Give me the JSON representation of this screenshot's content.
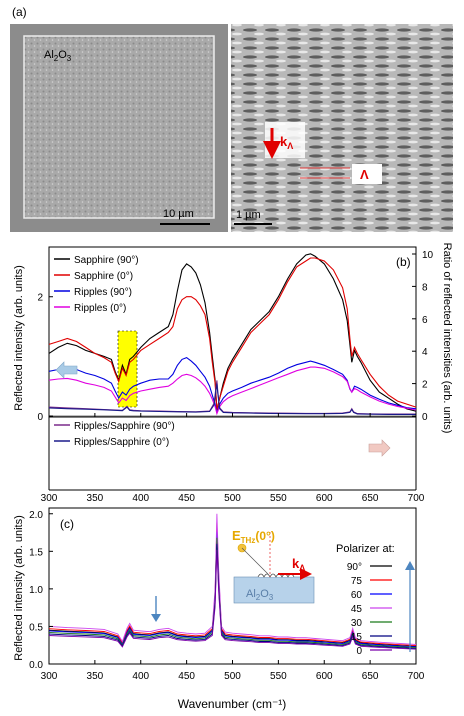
{
  "panel_a": {
    "label": "(a)",
    "left_image": {
      "material_label": "Al2O3",
      "scale_bar_label": "10 µm"
    },
    "right_image": {
      "k_label": "k",
      "k_subscript": "Λ",
      "period_label": "Λ",
      "scale_bar_label": "1 µm"
    }
  },
  "chart_data": [
    {
      "panel": "(b)",
      "type": "line",
      "xlim": [
        300,
        700
      ],
      "left_axis": {
        "ylabel": "Reflected intensity (arb. units)",
        "ticks": [
          0,
          2
        ],
        "ylim": [
          0,
          2.7
        ]
      },
      "right_axis": {
        "ylabel": "Ratio of reflected intensities (arb. units)",
        "ticks": [
          0,
          2,
          4,
          6,
          8,
          10
        ],
        "ylim": [
          0,
          10
        ]
      },
      "highlight": {
        "x_range": [
          370,
          388
        ],
        "color": "#ffff00"
      },
      "series": [
        {
          "name": "Sapphire (90°)",
          "color": "#000000",
          "axis": "left",
          "x": [
            300,
            310,
            320,
            330,
            340,
            350,
            360,
            368,
            372,
            376,
            380,
            384,
            388,
            392,
            400,
            410,
            420,
            430,
            435,
            440,
            445,
            450,
            455,
            460,
            465,
            470,
            475,
            478,
            481,
            483,
            486,
            490,
            495,
            500,
            510,
            520,
            530,
            540,
            550,
            560,
            570,
            580,
            585,
            590,
            600,
            610,
            620,
            625,
            628,
            630,
            633,
            636,
            640,
            650,
            660,
            670,
            680,
            690,
            700
          ],
          "y": [
            1.05,
            1.15,
            1.22,
            1.18,
            1.1,
            1.05,
            1.0,
            0.95,
            0.75,
            0.6,
            0.85,
            0.7,
            0.95,
            1.0,
            1.15,
            1.3,
            1.4,
            1.5,
            1.7,
            2.1,
            2.45,
            2.55,
            2.5,
            2.4,
            2.2,
            1.9,
            1.4,
            1.0,
            0.6,
            0.1,
            0.3,
            0.55,
            0.8,
            0.95,
            1.2,
            1.45,
            1.6,
            1.75,
            2.0,
            2.3,
            2.55,
            2.7,
            2.72,
            2.68,
            2.55,
            2.3,
            1.95,
            1.6,
            1.2,
            0.9,
            1.1,
            1.0,
            0.9,
            0.6,
            0.4,
            0.3,
            0.2,
            0.12,
            0.08
          ]
        },
        {
          "name": "Sapphire (0°)",
          "color": "#e00000",
          "axis": "left",
          "x": [
            300,
            310,
            320,
            330,
            340,
            350,
            360,
            368,
            372,
            376,
            380,
            384,
            388,
            392,
            400,
            410,
            420,
            430,
            435,
            440,
            445,
            450,
            455,
            460,
            465,
            470,
            475,
            478,
            481,
            483,
            486,
            490,
            495,
            500,
            510,
            520,
            530,
            540,
            550,
            560,
            570,
            580,
            585,
            590,
            600,
            610,
            620,
            625,
            628,
            630,
            633,
            636,
            640,
            650,
            660,
            670,
            680,
            690,
            700
          ],
          "y": [
            1.2,
            1.25,
            1.3,
            1.25,
            1.15,
            1.05,
            0.98,
            0.9,
            0.72,
            0.58,
            0.8,
            0.68,
            0.9,
            0.95,
            1.1,
            1.2,
            1.3,
            1.4,
            1.5,
            1.8,
            1.95,
            2.0,
            2.0,
            1.95,
            1.85,
            1.7,
            1.3,
            0.9,
            0.55,
            0.1,
            0.3,
            0.5,
            0.75,
            0.9,
            1.15,
            1.4,
            1.55,
            1.7,
            1.95,
            2.25,
            2.5,
            2.6,
            2.65,
            2.65,
            2.6,
            2.45,
            2.15,
            1.8,
            1.3,
            1.0,
            1.15,
            1.05,
            0.95,
            0.7,
            0.5,
            0.35,
            0.25,
            0.2,
            0.15
          ]
        },
        {
          "name": "Ripples (90°)",
          "color": "#0000e0",
          "axis": "left",
          "x": [
            300,
            310,
            320,
            330,
            340,
            350,
            360,
            368,
            372,
            376,
            380,
            384,
            388,
            392,
            400,
            410,
            420,
            430,
            435,
            440,
            445,
            450,
            455,
            460,
            465,
            470,
            475,
            478,
            481,
            483,
            486,
            490,
            495,
            500,
            510,
            520,
            530,
            540,
            550,
            560,
            570,
            580,
            585,
            590,
            600,
            610,
            620,
            625,
            628,
            630,
            633,
            636,
            640,
            650,
            660,
            670,
            680,
            690,
            700
          ],
          "y": [
            0.75,
            0.78,
            0.8,
            0.78,
            0.72,
            0.68,
            0.62,
            0.55,
            0.42,
            0.3,
            0.4,
            0.35,
            0.45,
            0.5,
            0.55,
            0.6,
            0.62,
            0.62,
            0.7,
            0.85,
            0.95,
            0.98,
            0.92,
            0.85,
            0.75,
            0.65,
            0.5,
            0.35,
            0.2,
            0.05,
            0.2,
            0.3,
            0.38,
            0.42,
            0.48,
            0.55,
            0.6,
            0.65,
            0.72,
            0.8,
            0.86,
            0.9,
            0.92,
            0.9,
            0.85,
            0.78,
            0.7,
            0.6,
            0.45,
            0.4,
            0.5,
            0.48,
            0.45,
            0.35,
            0.28,
            0.22,
            0.18,
            0.14,
            0.12
          ]
        },
        {
          "name": "Ripples (0°)",
          "color": "#e000e0",
          "axis": "left",
          "x": [
            300,
            310,
            320,
            330,
            340,
            350,
            360,
            368,
            372,
            376,
            380,
            384,
            388,
            392,
            400,
            410,
            420,
            430,
            435,
            440,
            445,
            450,
            455,
            460,
            465,
            470,
            475,
            478,
            481,
            483,
            486,
            490,
            495,
            500,
            510,
            520,
            530,
            540,
            550,
            560,
            570,
            580,
            585,
            590,
            600,
            610,
            620,
            625,
            628,
            630,
            633,
            636,
            640,
            650,
            660,
            670,
            680,
            690,
            700
          ],
          "y": [
            0.6,
            0.62,
            0.63,
            0.6,
            0.55,
            0.52,
            0.48,
            0.42,
            0.32,
            0.22,
            0.3,
            0.26,
            0.34,
            0.38,
            0.42,
            0.45,
            0.48,
            0.5,
            0.55,
            0.62,
            0.68,
            0.7,
            0.68,
            0.64,
            0.58,
            0.5,
            0.38,
            0.28,
            0.16,
            0.04,
            0.16,
            0.24,
            0.3,
            0.34,
            0.4,
            0.46,
            0.52,
            0.58,
            0.64,
            0.7,
            0.76,
            0.8,
            0.82,
            0.82,
            0.8,
            0.74,
            0.66,
            0.58,
            0.46,
            0.4,
            0.46,
            0.44,
            0.4,
            0.32,
            0.25,
            0.2,
            0.16,
            0.13,
            0.1
          ]
        },
        {
          "name": "Ripples/Sapphire (90°)",
          "color": "#7a2a8a",
          "axis": "right",
          "x": [
            300,
            320,
            340,
            360,
            380,
            385,
            388,
            392,
            400,
            420,
            440,
            460,
            475,
            480,
            482,
            483,
            484,
            486,
            490,
            500,
            520,
            540,
            560,
            580,
            600,
            620,
            628,
            630,
            632,
            636,
            650,
            670,
            690,
            700
          ],
          "y": [
            0.55,
            0.5,
            0.45,
            0.4,
            0.35,
            0.6,
            0.38,
            0.35,
            0.32,
            0.3,
            0.28,
            0.26,
            0.3,
            0.8,
            1.8,
            2.2,
            1.5,
            0.5,
            0.25,
            0.22,
            0.2,
            0.18,
            0.17,
            0.16,
            0.16,
            0.18,
            0.25,
            0.45,
            0.25,
            0.15,
            0.13,
            0.12,
            0.12,
            0.12
          ]
        },
        {
          "name": "Ripples/Sapphire (0°)",
          "color": "#1a1a8a",
          "axis": "right",
          "x": [
            300,
            320,
            340,
            360,
            380,
            385,
            388,
            392,
            400,
            420,
            440,
            460,
            475,
            480,
            482,
            483,
            484,
            486,
            490,
            500,
            520,
            540,
            560,
            580,
            600,
            620,
            628,
            630,
            632,
            636,
            650,
            670,
            690,
            700
          ],
          "y": [
            0.5,
            0.45,
            0.42,
            0.38,
            0.33,
            0.55,
            0.35,
            0.32,
            0.3,
            0.28,
            0.26,
            0.24,
            0.28,
            0.7,
            1.6,
            2.0,
            1.4,
            0.45,
            0.22,
            0.2,
            0.18,
            0.16,
            0.15,
            0.14,
            0.14,
            0.16,
            0.22,
            0.4,
            0.22,
            0.13,
            0.11,
            0.1,
            0.1,
            0.1
          ]
        }
      ]
    },
    {
      "panel": "(c)",
      "type": "line",
      "xlim": [
        300,
        700
      ],
      "ylim": [
        0,
        2.05
      ],
      "xlabel": "Wavenumber (cm⁻¹)",
      "ylabel": "Reflected intensity (arb. units)",
      "xticks": [
        300,
        350,
        400,
        450,
        500,
        550,
        600,
        650,
        700
      ],
      "yticks": [
        0.0,
        0.5,
        1.0,
        1.5,
        2.0
      ],
      "legend_title": "Polarizer at:",
      "inset": {
        "field_label": "E",
        "field_subscript": "THz",
        "field_angle": "(0°)",
        "wave_label": "k",
        "wave_subscript": "Λ",
        "substrate_label": "Al2O3"
      },
      "series": [
        {
          "name": "90°",
          "color": "#000000",
          "base": 0.45
        },
        {
          "name": "75",
          "color": "#ff0000",
          "base": 0.47
        },
        {
          "name": "60",
          "color": "#0000ff",
          "base": 0.44
        },
        {
          "name": "45",
          "color": "#cc44ee",
          "base": 0.5
        },
        {
          "name": "30",
          "color": "#1a7a1a",
          "base": 0.42
        },
        {
          "name": "15",
          "color": "#000080",
          "base": 0.4
        },
        {
          "name": "0",
          "color": "#7a00aa",
          "base": 0.38
        }
      ],
      "shape": {
        "x": [
          300,
          320,
          340,
          360,
          375,
          380,
          385,
          388,
          392,
          400,
          410,
          420,
          430,
          440,
          450,
          460,
          470,
          478,
          481,
          483,
          485,
          488,
          492,
          500,
          510,
          520,
          530,
          540,
          550,
          560,
          570,
          580,
          590,
          600,
          610,
          620,
          628,
          631,
          634,
          640,
          660,
          680,
          700
        ],
        "y": [
          1.0,
          0.97,
          0.95,
          0.92,
          0.8,
          0.6,
          0.95,
          1.08,
          0.9,
          0.88,
          0.86,
          0.92,
          0.95,
          0.85,
          0.82,
          0.8,
          0.82,
          1.0,
          2.0,
          4.0,
          2.5,
          1.0,
          0.85,
          0.82,
          0.8,
          0.78,
          0.75,
          0.75,
          0.72,
          0.72,
          0.7,
          0.7,
          0.68,
          0.66,
          0.64,
          0.62,
          0.7,
          0.95,
          0.7,
          0.62,
          0.58,
          0.55,
          0.52
        ]
      }
    }
  ]
}
